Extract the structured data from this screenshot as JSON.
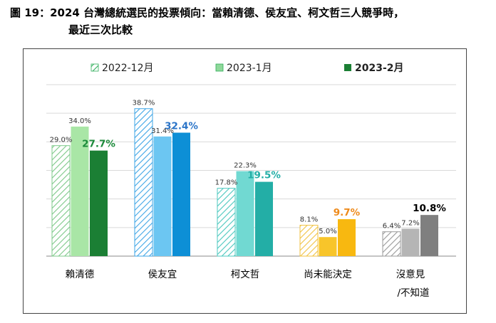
{
  "title_line1": "圖 19：2024 台灣總統選民的投票傾向：當賴清德、侯友宜、柯文哲三人競爭時，",
  "title_line2": "最近三次比較",
  "chart_data": {
    "type": "bar",
    "title": "圖 19：2024 台灣總統選民的投票傾向：當賴清德、侯友宜、柯文哲三人競爭時，最近三次比較",
    "legend_position": "top",
    "grid": true,
    "ylim": [
      0,
      45
    ],
    "categories": [
      "賴清德",
      "侯友宜",
      "柯文哲",
      "尚未能決定",
      "沒意見/不知道"
    ],
    "category_labels": [
      [
        "賴清德"
      ],
      [
        "侯友宜"
      ],
      [
        "柯文哲"
      ],
      [
        "尚未能決定"
      ],
      [
        "沒意見",
        "/不知道"
      ]
    ],
    "series": [
      {
        "name": "2022-12月",
        "values": [
          29.0,
          38.7,
          17.8,
          8.1,
          6.4
        ],
        "labels": [
          "29.0%",
          "38.7%",
          "17.8%",
          "8.1%",
          "6.4%"
        ],
        "style": "hatched"
      },
      {
        "name": "2023-1月",
        "values": [
          34.0,
          31.4,
          22.3,
          5.0,
          7.2
        ],
        "labels": [
          "34.0%",
          "31.4%",
          "22.3%",
          "5.0%",
          "7.2%"
        ],
        "style": "light"
      },
      {
        "name": "2023-2月",
        "values": [
          27.7,
          32.4,
          19.5,
          9.7,
          10.8
        ],
        "labels": [
          "27.7%",
          "32.4%",
          "19.5%",
          "9.7%",
          "10.8%"
        ],
        "style": "dark"
      }
    ],
    "colors": {
      "green": {
        "hatch": "#7ec98a",
        "light": "#a9e6a6",
        "dark": "#1b7f34",
        "label": "#1b8a3a"
      },
      "blue": {
        "hatch": "#3ea5e6",
        "light": "#6cc6f2",
        "dark": "#0d8fd6",
        "label": "#2a74c8"
      },
      "teal": {
        "hatch": "#4cc8bf",
        "light": "#71d9d2",
        "dark": "#23aea6",
        "label": "#23aea6"
      },
      "yellow": {
        "hatch": "#f0c240",
        "light": "#f8c52a",
        "dark": "#f8b810",
        "label": "#ee8a1a"
      },
      "gray": {
        "hatch": "#9a9a9a",
        "light": "#b5b5b5",
        "dark": "#7f7f7f",
        "label": "#000000"
      }
    },
    "category_colors": [
      "green",
      "blue",
      "teal",
      "yellow",
      "gray"
    ],
    "legend_colors": {
      "hatch": "#2fae5a",
      "light": "#8fd89a",
      "dark": "#1b7f34"
    }
  }
}
